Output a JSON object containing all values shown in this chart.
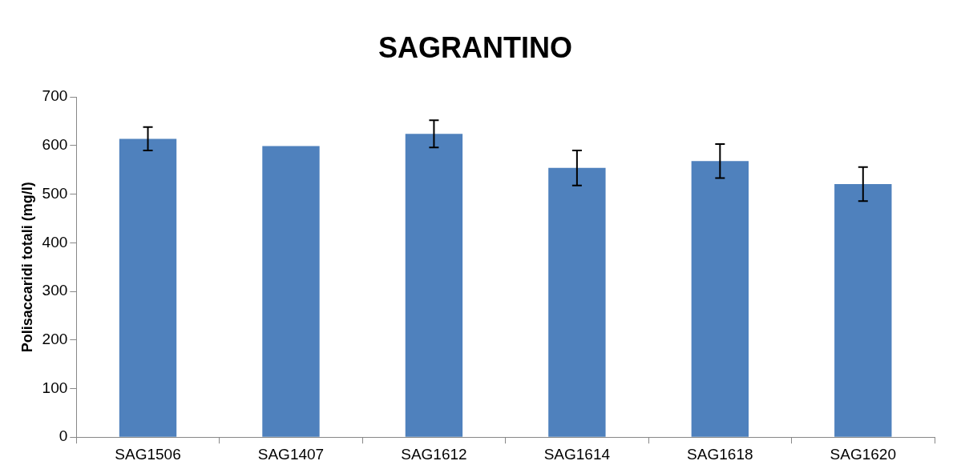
{
  "chart_data": {
    "type": "bar",
    "title": "SAGRANTINO",
    "ylabel": "Polisaccaridi totali (mg/l)",
    "categories": [
      "SAG1506",
      "SAG1407",
      "SAG1612",
      "SAG1614",
      "SAG1618",
      "SAG1620"
    ],
    "values": [
      614,
      599,
      624,
      554,
      568,
      521
    ],
    "errors": [
      24,
      null,
      28,
      36,
      35,
      35
    ],
    "color": "#4f81bd",
    "ylim": [
      0,
      700
    ],
    "yticks": [
      0,
      100,
      200,
      300,
      400,
      500,
      600,
      700
    ],
    "grid": false,
    "legend": false
  }
}
